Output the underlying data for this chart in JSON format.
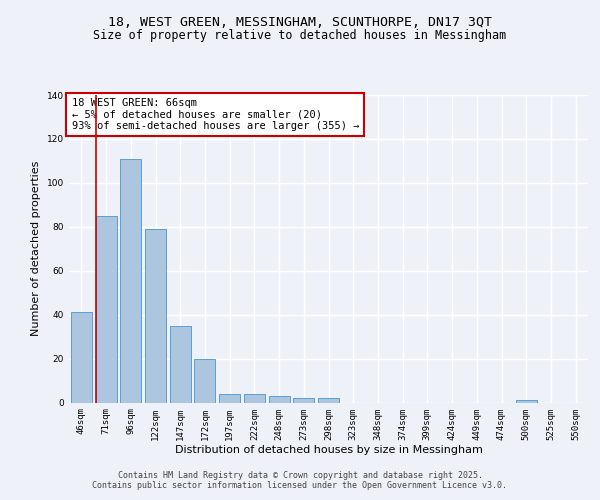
{
  "title_line1": "18, WEST GREEN, MESSINGHAM, SCUNTHORPE, DN17 3QT",
  "title_line2": "Size of property relative to detached houses in Messingham",
  "xlabel": "Distribution of detached houses by size in Messingham",
  "ylabel": "Number of detached properties",
  "categories": [
    "46sqm",
    "71sqm",
    "96sqm",
    "122sqm",
    "147sqm",
    "172sqm",
    "197sqm",
    "222sqm",
    "248sqm",
    "273sqm",
    "298sqm",
    "323sqm",
    "348sqm",
    "374sqm",
    "399sqm",
    "424sqm",
    "449sqm",
    "474sqm",
    "500sqm",
    "525sqm",
    "550sqm"
  ],
  "values": [
    41,
    85,
    111,
    79,
    35,
    20,
    4,
    4,
    3,
    2,
    2,
    0,
    0,
    0,
    0,
    0,
    0,
    0,
    1,
    0,
    0
  ],
  "bar_color": "#adc6e0",
  "bar_edge_color": "#5a9fd4",
  "marker_color": "#cc0000",
  "ylim": [
    0,
    140
  ],
  "yticks": [
    0,
    20,
    40,
    60,
    80,
    100,
    120,
    140
  ],
  "annotation_title": "18 WEST GREEN: 66sqm",
  "annotation_line2": "← 5% of detached houses are smaller (20)",
  "annotation_line3": "93% of semi-detached houses are larger (355) →",
  "annotation_box_color": "#ffffff",
  "annotation_border_color": "#cc0000",
  "footer_line1": "Contains HM Land Registry data © Crown copyright and database right 2025.",
  "footer_line2": "Contains public sector information licensed under the Open Government Licence v3.0.",
  "bg_color": "#eef2f8",
  "plot_bg_color": "#eef2f8",
  "grid_color": "#ffffff",
  "title_fontsize": 9.5,
  "subtitle_fontsize": 8.5,
  "axis_label_fontsize": 8,
  "tick_fontsize": 6.5,
  "annotation_fontsize": 7.5,
  "footer_fontsize": 6
}
